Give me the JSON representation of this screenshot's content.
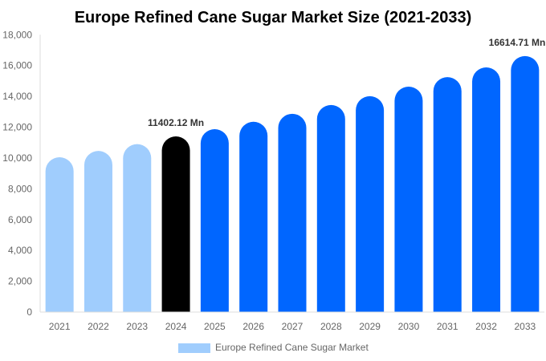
{
  "chart_data": {
    "type": "bar",
    "title": "Europe Refined Cane Sugar Market Size (2021-2033)",
    "categories": [
      "2021",
      "2022",
      "2023",
      "2024",
      "2025",
      "2026",
      "2027",
      "2028",
      "2029",
      "2030",
      "2031",
      "2032",
      "2033"
    ],
    "series": [
      {
        "name": "Europe Refined Cane Sugar Market",
        "values": [
          10050,
          10460,
          10900,
          11402.12,
          11870,
          12350,
          12870,
          13440,
          14010,
          14630,
          15250,
          15880,
          16614.71
        ]
      }
    ],
    "bar_colors": [
      "#a0cdfd",
      "#a0cdfd",
      "#a0cdfd",
      "#000000",
      "#0066ff",
      "#0066ff",
      "#0066ff",
      "#0066ff",
      "#0066ff",
      "#0066ff",
      "#0066ff",
      "#0066ff",
      "#0066ff"
    ],
    "legend_color": "#a0cdfd",
    "data_labels": [
      {
        "category": "2024",
        "text": "11402.12 Mn"
      },
      {
        "category": "2033",
        "text": "16614.71 Mn"
      }
    ],
    "ylim": [
      0,
      18000
    ],
    "yticks": [
      "0",
      "2,000",
      "4,000",
      "6,000",
      "8,000",
      "10,000",
      "12,000",
      "14,000",
      "16,000",
      "18,000"
    ],
    "xlabel": "",
    "ylabel": "",
    "grid": false,
    "legend_position": "bottom"
  }
}
